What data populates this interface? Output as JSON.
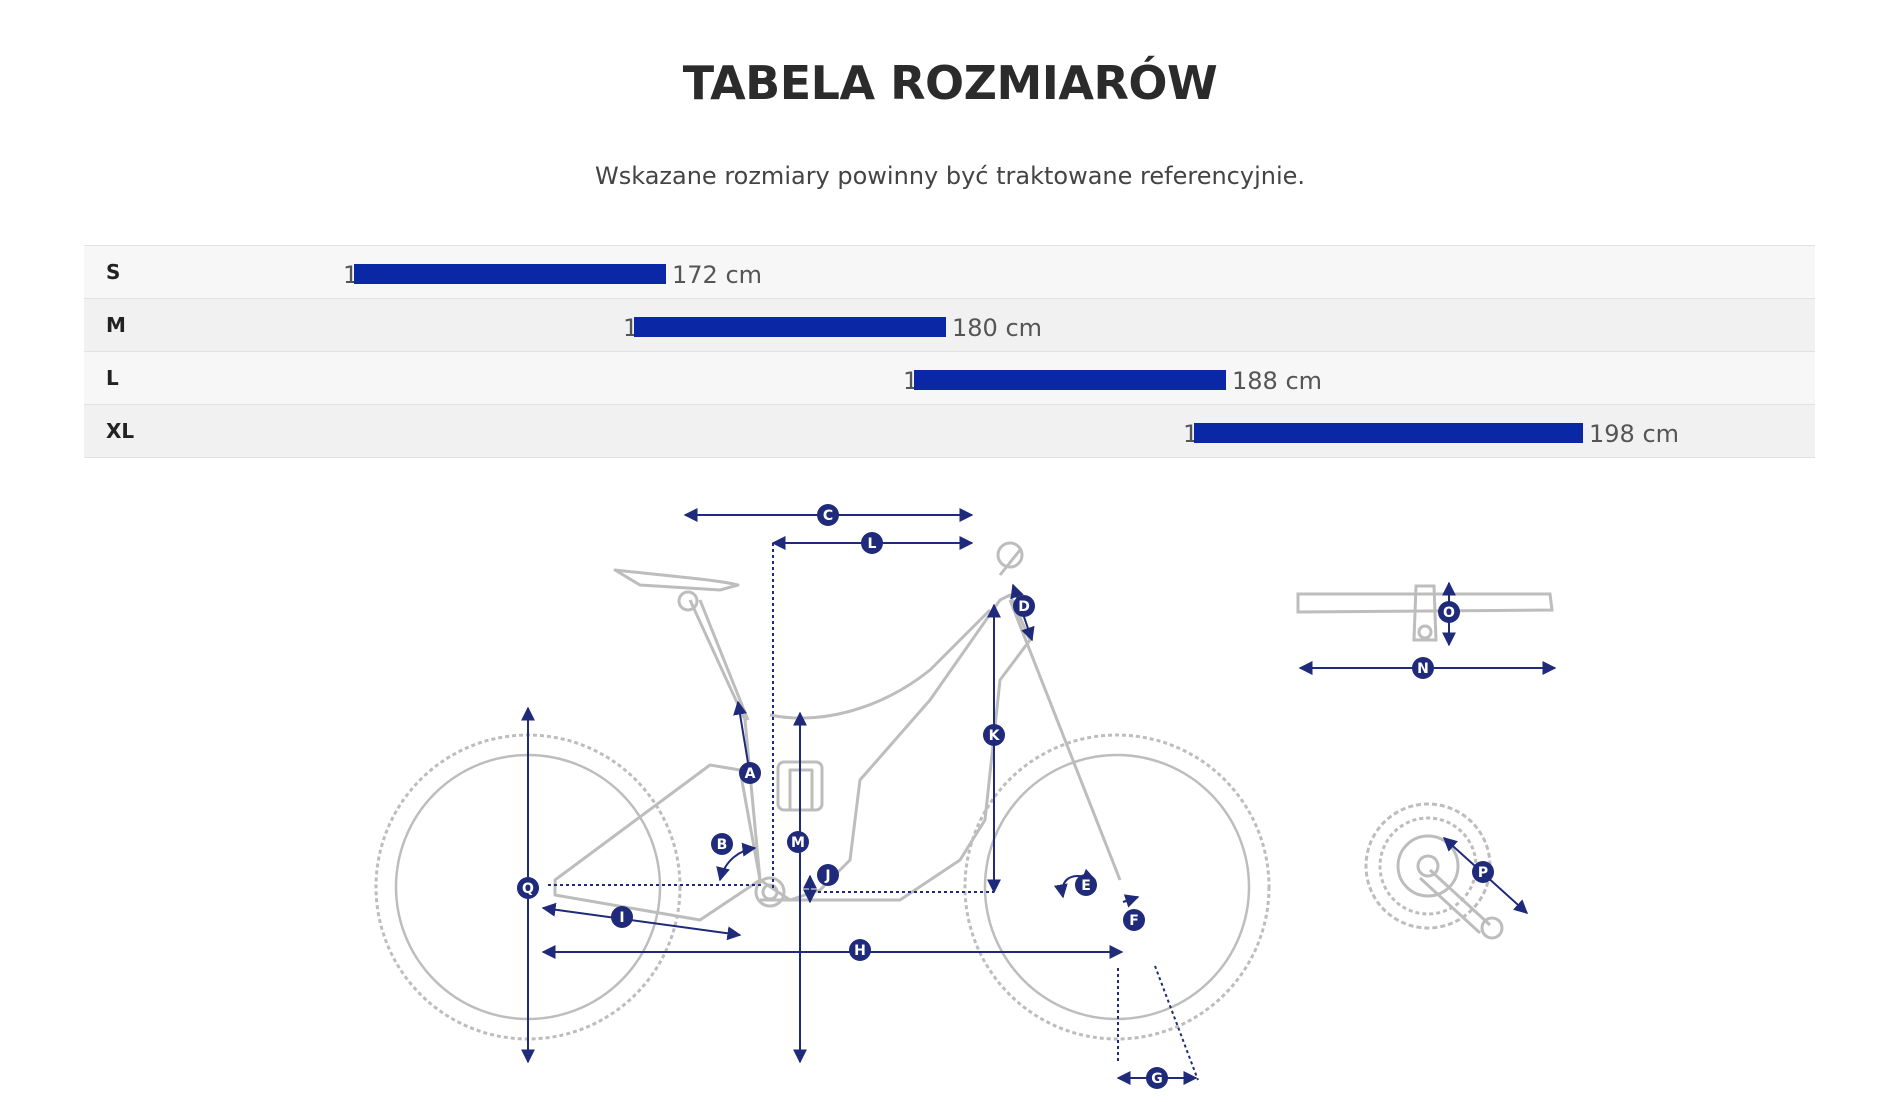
{
  "title": "TABELA ROZMIARÓW",
  "subtitle": "Wskazane rozmiary powinny być traktowane referencyjnie.",
  "accent_color": "#0a27a6",
  "sizes": [
    {
      "label": "S",
      "from": "163 cm",
      "to": "172 cm",
      "min_cm": 163,
      "max_cm": 172
    },
    {
      "label": "M",
      "from": "171 cm",
      "to": "180 cm",
      "min_cm": 171,
      "max_cm": 180
    },
    {
      "label": "L",
      "from": "179 cm",
      "to": "188 cm",
      "min_cm": 179,
      "max_cm": 188
    },
    {
      "label": "XL",
      "from": "187 cm",
      "to": "198 cm",
      "min_cm": 187,
      "max_cm": 198
    }
  ],
  "diagram_labels": [
    "A",
    "B",
    "C",
    "D",
    "E",
    "F",
    "G",
    "H",
    "I",
    "J",
    "K",
    "L",
    "M",
    "N",
    "O",
    "P",
    "Q"
  ]
}
